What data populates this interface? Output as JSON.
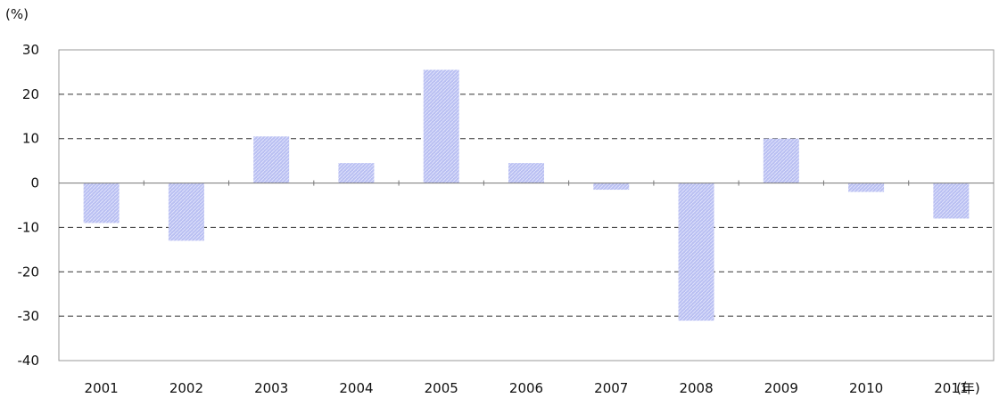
{
  "chart_data": {
    "type": "bar",
    "title": "",
    "ylabel": "(%)",
    "xlabel": "(年)",
    "categories": [
      "2001",
      "2002",
      "2003",
      "2004",
      "2005",
      "2006",
      "2007",
      "2008",
      "2009",
      "2010",
      "2011"
    ],
    "values": [
      -9,
      -13,
      10.5,
      4.5,
      25.5,
      4.5,
      -1.5,
      -31,
      10,
      -2,
      -8
    ],
    "ylim": [
      -40,
      30
    ],
    "yticks": [
      30,
      20,
      10,
      0,
      -10,
      -20,
      -30,
      -40
    ],
    "ytick_labels": [
      "30",
      "20",
      "10",
      "0",
      "-10",
      "-20",
      "-30",
      "-40"
    ],
    "grid": true,
    "grid_style": "dashed",
    "bar_color": "#b9bff2",
    "bar_color_light": "#dfe2fb",
    "legend": "none"
  }
}
